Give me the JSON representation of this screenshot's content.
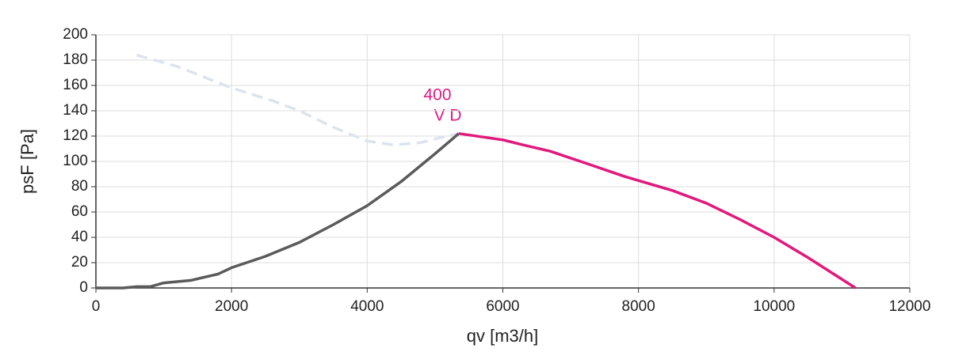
{
  "chart_data": {
    "type": "line",
    "x_label": "qv [m3/h]",
    "y_label": "psF [Pa]",
    "annotations": [
      "400",
      "V D"
    ],
    "xlim": [
      0,
      12000
    ],
    "xticks": [
      0,
      2000,
      4000,
      6000,
      8000,
      10000,
      12000
    ],
    "ylim": [
      0,
      200
    ],
    "yticks": [
      0,
      20,
      40,
      60,
      80,
      100,
      120,
      140,
      160,
      180,
      200
    ],
    "grid": true,
    "series": [
      {
        "color": "#dde3ee",
        "style": "dashed",
        "x": [
          600,
          1200,
          2000,
          2600,
          3000,
          3500,
          4000,
          4400,
          4800,
          5100,
          5350
        ],
        "values": [
          184,
          175,
          158,
          148,
          140,
          127,
          116,
          113,
          115,
          119,
          122
        ]
      },
      {
        "color": "#5a5a5a",
        "style": "solid",
        "x": [
          0,
          400,
          600,
          800,
          1000,
          1400,
          1800,
          2000,
          2500,
          3000,
          3500,
          4000,
          4500,
          5000,
          5350
        ],
        "values": [
          0,
          0,
          1,
          1,
          4,
          6,
          11,
          16,
          25,
          36,
          50,
          65,
          84,
          106,
          122
        ]
      },
      {
        "color": "#e0197d",
        "style": "solid",
        "x": [
          5350,
          6000,
          6300,
          6700,
          7200,
          7800,
          8500,
          9000,
          9500,
          10000,
          10500,
          11200
        ],
        "values": [
          122,
          117,
          113,
          108,
          99,
          88,
          77,
          67,
          54,
          40,
          24,
          0
        ]
      }
    ]
  }
}
